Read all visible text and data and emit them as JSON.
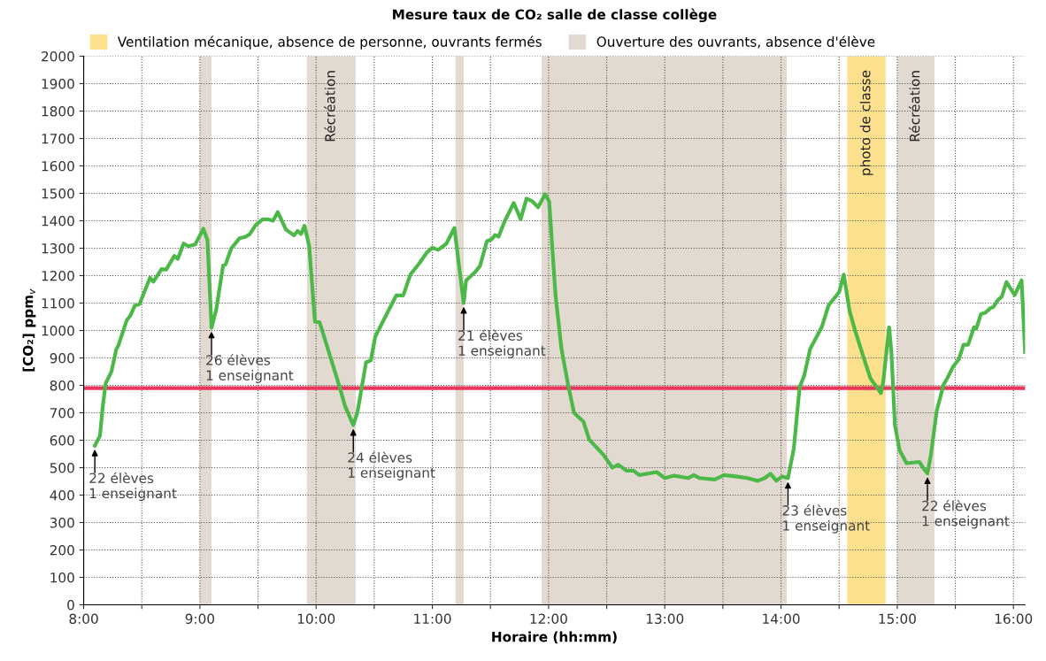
{
  "chart_data": {
    "type": "line",
    "title": "Mesure taux de CO₂ salle de classe collège",
    "xlabel": "Horaire (hh:mm)",
    "ylabel": "[CO₂] ppm$_{v}$",
    "series": [
      {
        "color": "#4cb848",
        "x": [
          8.096,
          8.14,
          8.164,
          8.19,
          8.24,
          8.28,
          8.3,
          8.37,
          8.4,
          8.44,
          8.48,
          8.57,
          8.6,
          8.67,
          8.71,
          8.78,
          8.81,
          8.86,
          8.9,
          8.96,
          9.03,
          9.065,
          9.1,
          9.14,
          9.2,
          9.22,
          9.27,
          9.34,
          9.39,
          9.43,
          9.48,
          9.54,
          9.59,
          9.63,
          9.67,
          9.74,
          9.81,
          9.84,
          9.87,
          9.9,
          9.94,
          9.99,
          10.03,
          10.13,
          10.2,
          10.25,
          10.32,
          10.355,
          10.39,
          10.43,
          10.47,
          10.51,
          10.58,
          10.69,
          10.75,
          10.81,
          10.89,
          10.95,
          11.0,
          11.05,
          11.12,
          11.19,
          11.23,
          11.27,
          11.29,
          11.37,
          11.41,
          11.47,
          11.51,
          11.54,
          11.57,
          11.62,
          11.7,
          11.76,
          11.81,
          11.86,
          11.91,
          11.97,
          12.005,
          12.06,
          12.11,
          12.17,
          12.22,
          12.3,
          12.35,
          12.47,
          12.55,
          12.6,
          12.67,
          12.73,
          12.78,
          12.93,
          13.0,
          13.08,
          13.2,
          13.25,
          13.3,
          13.43,
          13.51,
          13.61,
          13.71,
          13.8,
          13.86,
          13.91,
          13.96,
          14.01,
          14.06,
          14.11,
          14.16,
          14.2,
          14.25,
          14.29,
          14.35,
          14.41,
          14.48,
          14.5,
          14.54,
          14.59,
          14.64,
          14.72,
          14.77,
          14.86,
          14.88,
          14.93,
          14.95,
          14.98,
          15.02,
          15.08,
          15.19,
          15.23,
          15.26,
          15.29,
          15.34,
          15.4,
          15.43,
          15.48,
          15.53,
          15.57,
          15.61,
          15.66,
          15.68,
          15.72,
          15.76,
          15.8,
          15.83,
          15.86,
          15.9,
          15.94,
          16.01,
          16.07,
          16.1
        ],
        "values": [
          580,
          616,
          723,
          808,
          851,
          931,
          947,
          1037,
          1053,
          1091,
          1096,
          1192,
          1178,
          1224,
          1222,
          1272,
          1261,
          1317,
          1307,
          1314,
          1371,
          1330,
          1010,
          1075,
          1237,
          1240,
          1299,
          1336,
          1341,
          1352,
          1384,
          1405,
          1405,
          1400,
          1432,
          1368,
          1347,
          1363,
          1352,
          1382,
          1309,
          1032,
          1030,
          893,
          797,
          723,
          655,
          701,
          786,
          884,
          891,
          979,
          1037,
          1128,
          1128,
          1203,
          1246,
          1283,
          1302,
          1294,
          1316,
          1374,
          1235,
          1100,
          1182,
          1214,
          1235,
          1326,
          1332,
          1348,
          1342,
          1396,
          1465,
          1406,
          1481,
          1471,
          1449,
          1497,
          1471,
          1128,
          936,
          797,
          699,
          668,
          602,
          548,
          500,
          511,
          489,
          489,
          473,
          484,
          462,
          471,
          462,
          473,
          462,
          457,
          473,
          468,
          462,
          452,
          462,
          478,
          452,
          468,
          462,
          569,
          793,
          836,
          932,
          964,
          1012,
          1092,
          1129,
          1140,
          1204,
          1071,
          996,
          889,
          825,
          772,
          815,
          1012,
          921,
          655,
          564,
          516,
          521,
          495,
          479,
          548,
          708,
          804,
          825,
          868,
          895,
          948,
          948,
          1012,
          1007,
          1060,
          1065,
          1081,
          1087,
          1108,
          1124,
          1177,
          1129,
          1183,
          921
        ]
      }
    ],
    "xlim": [
      8,
      16.1
    ],
    "ylim": [
      0,
      2000
    ],
    "xticks": [
      {
        "value": 8,
        "label": "8:00"
      },
      {
        "value": 8.5,
        "label": null
      },
      {
        "value": 9,
        "label": "9:00"
      },
      {
        "value": 9.5,
        "label": null
      },
      {
        "value": 10,
        "label": "10:00"
      },
      {
        "value": 10.5,
        "label": null
      },
      {
        "value": 11,
        "label": "11:00"
      },
      {
        "value": 11.5,
        "label": null
      },
      {
        "value": 12,
        "label": "12:00"
      },
      {
        "value": 12.5,
        "label": null
      },
      {
        "value": 13,
        "label": "13:00"
      },
      {
        "value": 13.5,
        "label": null
      },
      {
        "value": 14,
        "label": "14:00"
      },
      {
        "value": 14.5,
        "label": null
      },
      {
        "value": 15,
        "label": "15:00"
      },
      {
        "value": 15.5,
        "label": null
      },
      {
        "value": 16,
        "label": "16:00"
      }
    ],
    "yticks": [
      0,
      100,
      200,
      300,
      400,
      500,
      600,
      700,
      800,
      900,
      1000,
      1100,
      1200,
      1300,
      1400,
      1500,
      1600,
      1700,
      1800,
      1900,
      2000
    ],
    "grid": true,
    "legend": "top",
    "line_style": "solid",
    "marker": "none",
    "ref_lines": [
      {
        "axis": "y",
        "value": 790,
        "color": "#e8375a"
      }
    ],
    "bands": [
      {
        "axis": "x",
        "from": 14.57,
        "to": 14.9,
        "color": "#fde08e",
        "label": "photo de classe"
      },
      {
        "axis": "x",
        "from": 9.0,
        "to": 9.1,
        "color": "#e2d9d0"
      },
      {
        "axis": "x",
        "from": 9.92,
        "to": 10.34,
        "color": "#e2d9d0",
        "label": "Récréation"
      },
      {
        "axis": "x",
        "from": 11.2,
        "to": 11.27,
        "color": "#e2d9d0"
      },
      {
        "axis": "x",
        "from": 11.94,
        "to": 14.05,
        "color": "#e2d9d0"
      },
      {
        "axis": "x",
        "from": 15.0,
        "to": 15.32,
        "color": "#e2d9d0",
        "label": "Récréation"
      }
    ],
    "annotations": [
      "Ventilation mécanique, absence de personne, ouvrants fermés",
      "Ouverture des ouvrants, absence d'élève",
      {
        "text": "22 élèves\n1 enseignant",
        "x": 8.096,
        "y": 580
      },
      {
        "text": "26 élèves\n1 enseignant",
        "x": 9.1,
        "y": 1010
      },
      {
        "text": "24 élèves\n1 enseignant",
        "x": 10.32,
        "y": 655
      },
      {
        "text": "21 élèves\n1 enseignant",
        "x": 11.27,
        "y": 1100
      },
      {
        "text": "23 élèves\n1 enseignant",
        "x": 14.06,
        "y": 462
      },
      {
        "text": "22 élèves\n1 enseignant",
        "x": 15.26,
        "y": 479
      }
    ]
  }
}
